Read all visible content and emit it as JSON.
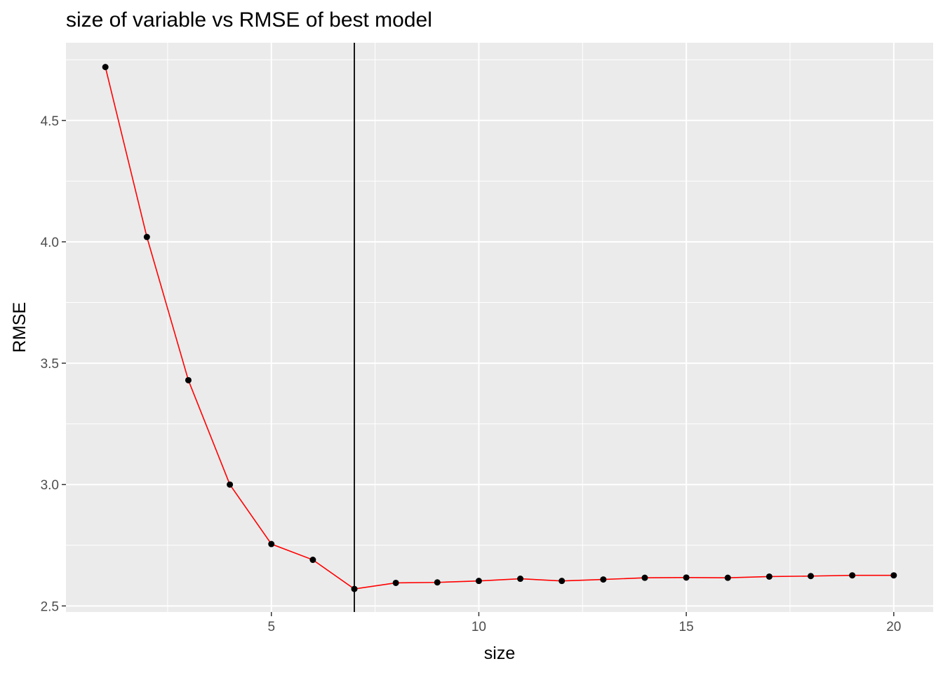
{
  "chart_data": {
    "type": "line",
    "title": "size of variable vs RMSE of best model",
    "xlabel": "size",
    "ylabel": "RMSE",
    "xlim": [
      0.05,
      20.95
    ],
    "ylim": [
      2.475,
      4.82
    ],
    "xticks": [
      5,
      10,
      15,
      20
    ],
    "xtick_labels": [
      "5",
      "10",
      "15",
      "20"
    ],
    "yticks": [
      2.5,
      3.0,
      3.5,
      4.0,
      4.5
    ],
    "ytick_labels": [
      "2.5",
      "3.0",
      "3.5",
      "4.0",
      "4.5"
    ],
    "grid": true,
    "legend": "none",
    "vline_x": 7,
    "line_color": "#ff0000",
    "point_color": "#000000",
    "vline_color": "#000000",
    "panel_background": "#ebebeb",
    "grid_color": "#ffffff",
    "series": [
      {
        "x": [
          1,
          2,
          3,
          4,
          5,
          6,
          7,
          8,
          9,
          10,
          11,
          12,
          13,
          14,
          15,
          16,
          17,
          18,
          19,
          20
        ],
        "y": [
          4.72,
          4.02,
          3.43,
          3.0,
          2.755,
          2.69,
          2.57,
          2.595,
          2.597,
          2.603,
          2.612,
          2.603,
          2.609,
          2.616,
          2.617,
          2.616,
          2.621,
          2.623,
          2.626,
          2.626
        ]
      }
    ]
  }
}
